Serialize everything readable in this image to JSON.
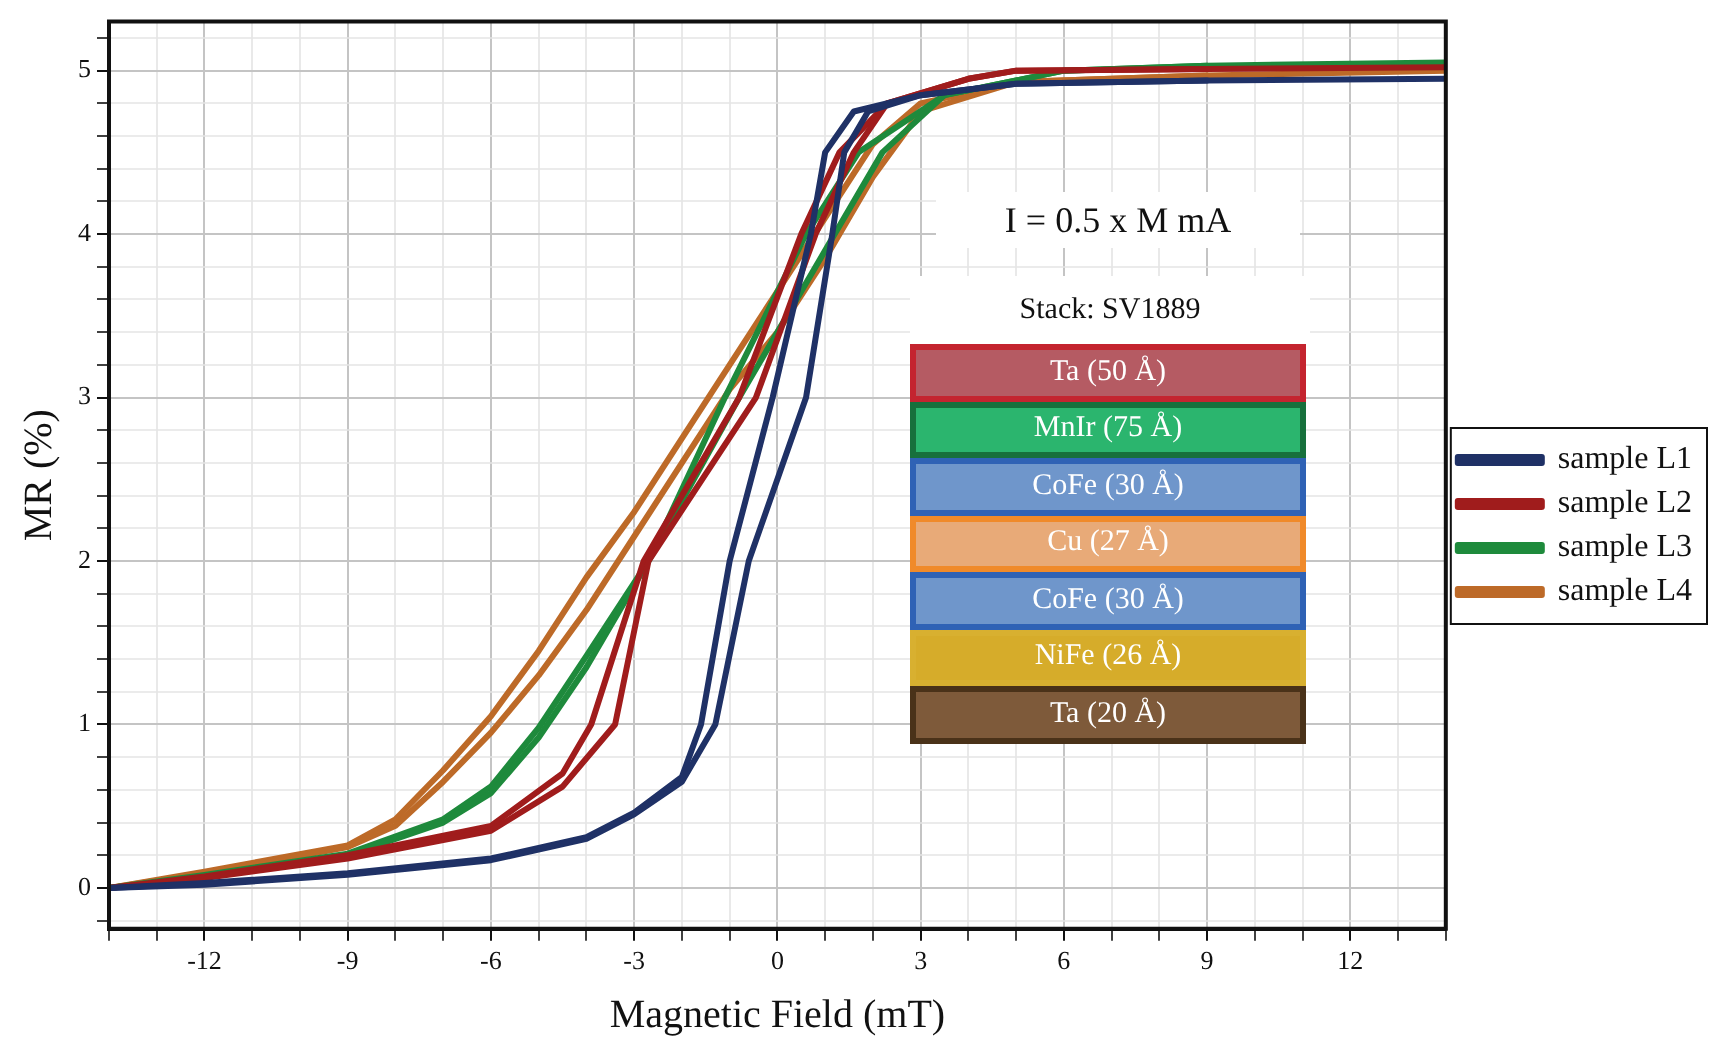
{
  "chart_data": {
    "type": "line",
    "xlabel": "Magnetic Field (mT)",
    "ylabel": "MR (%)",
    "xlim": [
      -14,
      14
    ],
    "ylim": [
      -0.25,
      5.3
    ],
    "xticks": [
      {
        "value": -14,
        "label": null
      },
      {
        "value": -13,
        "label": null
      },
      -12,
      {
        "value": -11,
        "label": null
      },
      {
        "value": -10,
        "label": null
      },
      -9,
      {
        "value": -8,
        "label": null
      },
      {
        "value": -7,
        "label": null
      },
      -6,
      {
        "value": -5,
        "label": null
      },
      {
        "value": -4,
        "label": null
      },
      -3,
      {
        "value": -2,
        "label": null
      },
      {
        "value": -1,
        "label": null
      },
      0,
      {
        "value": 1,
        "label": null
      },
      {
        "value": 2,
        "label": null
      },
      3,
      {
        "value": 4,
        "label": null
      },
      {
        "value": 5,
        "label": null
      },
      6,
      {
        "value": 7,
        "label": null
      },
      {
        "value": 8,
        "label": null
      },
      9,
      {
        "value": 10,
        "label": null
      },
      {
        "value": 11,
        "label": null
      },
      12,
      {
        "value": 13,
        "label": null
      },
      {
        "value": 14,
        "label": null
      }
    ],
    "yticks": [
      {
        "value": -0.2,
        "label": null
      },
      0,
      {
        "value": 0.2,
        "label": null
      },
      {
        "value": 0.4,
        "label": null
      },
      {
        "value": 0.6,
        "label": null
      },
      {
        "value": 0.8,
        "label": null
      },
      1,
      {
        "value": 1.2,
        "label": null
      },
      {
        "value": 1.4,
        "label": null
      },
      {
        "value": 1.6,
        "label": null
      },
      {
        "value": 1.8,
        "label": null
      },
      2,
      {
        "value": 2.2,
        "label": null
      },
      {
        "value": 2.4,
        "label": null
      },
      {
        "value": 2.6,
        "label": null
      },
      {
        "value": 2.8,
        "label": null
      },
      3,
      {
        "value": 3.2,
        "label": null
      },
      {
        "value": 3.4,
        "label": null
      },
      {
        "value": 3.6,
        "label": null
      },
      {
        "value": 3.8,
        "label": null
      },
      4,
      {
        "value": 4.2,
        "label": null
      },
      {
        "value": 4.4,
        "label": null
      },
      {
        "value": 4.6,
        "label": null
      },
      {
        "value": 4.8,
        "label": null
      },
      5,
      {
        "value": 5.2,
        "label": null
      }
    ],
    "grid": true,
    "legend": "right",
    "marker": "none",
    "line_style": "solid",
    "annotations": [
      "I = 0.5 x M  mA",
      "Stack: SV1889",
      "Ta (50 Å)",
      "MnIr (75 Å)",
      "CoFe (30 Å)",
      "Cu (27 Å)",
      "CoFe (30 Å)",
      "NiFe (26 Å)",
      "Ta (20 Å)"
    ],
    "series": [
      {
        "name": "sample L1",
        "color": "#1f3166",
        "x": [
          -14,
          -12,
          -9,
          -6,
          -4,
          -3,
          -2,
          -1.6,
          -1.3,
          -0.6,
          0.6,
          1.15,
          1.4,
          1.9,
          3,
          5,
          9,
          14
        ],
        "values": [
          0,
          0.02,
          0.08,
          0.17,
          0.3,
          0.45,
          0.65,
          0.85,
          1,
          2,
          3,
          4,
          4.5,
          4.75,
          4.85,
          4.92,
          4.94,
          4.95
        ]
      },
      {
        "color": "#1f3166",
        "x": [
          -14,
          -12,
          -9,
          -6,
          -4,
          -3,
          -2,
          -1.6,
          -1.0,
          -0.1,
          0.7,
          1.0,
          1.6,
          3,
          5,
          9
        ],
        "values": [
          0,
          0.03,
          0.09,
          0.18,
          0.31,
          0.46,
          0.68,
          1,
          2,
          3,
          4,
          4.5,
          4.75,
          4.85,
          4.92,
          4.94
        ]
      },
      {
        "name": "sample L2",
        "color": "#a01c1c",
        "x": [
          -14,
          -12,
          -9,
          -6,
          -4.5,
          -3.4,
          -2.7,
          -0.45,
          0.8,
          1.6,
          2.3,
          4,
          5,
          9,
          14
        ],
        "values": [
          0,
          0.06,
          0.18,
          0.35,
          0.62,
          1,
          2,
          3,
          4,
          4.5,
          4.8,
          4.95,
          5,
          5.01,
          5.02
        ]
      },
      {
        "color": "#a01c1c",
        "x": [
          -14,
          -12,
          -9,
          -6,
          -4.5,
          -3.9,
          -2.8,
          -0.8,
          0.5,
          1.3,
          2.3,
          4,
          5,
          9
        ],
        "values": [
          0,
          0.07,
          0.2,
          0.38,
          0.7,
          1,
          2,
          3,
          4,
          4.5,
          4.8,
          4.95,
          5,
          5.01
        ]
      },
      {
        "name": "sample L3",
        "color": "#1e8a3c",
        "x": [
          -14,
          -12,
          -9,
          -7,
          -6,
          -5,
          -4,
          -2.7,
          -0.8,
          1.2,
          2.2,
          3.5,
          6,
          9,
          14
        ],
        "values": [
          0,
          0.07,
          0.2,
          0.4,
          0.58,
          0.92,
          1.35,
          2,
          3,
          4,
          4.5,
          4.85,
          5,
          5.03,
          5.05
        ]
      },
      {
        "color": "#1e8a3c",
        "x": [
          -14,
          -12,
          -9,
          -7,
          -6,
          -5,
          -4,
          -2.7,
          -1.1,
          0.6,
          1.7,
          3.5,
          6,
          9
        ],
        "values": [
          0,
          0.08,
          0.21,
          0.42,
          0.62,
          0.98,
          1.42,
          2,
          3,
          4,
          4.5,
          4.85,
          5,
          5.03
        ]
      },
      {
        "name": "sample L4",
        "color": "#bd6a28",
        "x": [
          -14,
          -12,
          -9,
          -8,
          -7,
          -6,
          -5,
          -4,
          -3,
          -2,
          -1,
          0,
          1,
          2,
          3,
          5,
          9,
          14
        ],
        "values": [
          0,
          0.09,
          0.25,
          0.38,
          0.65,
          0.95,
          1.3,
          1.7,
          2.15,
          2.6,
          3.05,
          3.4,
          3.85,
          4.35,
          4.75,
          4.93,
          4.97,
          5
        ]
      },
      {
        "color": "#bd6a28",
        "x": [
          -14,
          -12,
          -9,
          -8,
          -7,
          -6,
          -5,
          -4,
          -3,
          -2,
          -1,
          0,
          1,
          2,
          3,
          5,
          9
        ],
        "values": [
          0,
          0.1,
          0.26,
          0.42,
          0.72,
          1.05,
          1.45,
          1.9,
          2.3,
          2.75,
          3.2,
          3.65,
          4.1,
          4.55,
          4.8,
          4.93,
          4.97
        ]
      }
    ]
  }
}
